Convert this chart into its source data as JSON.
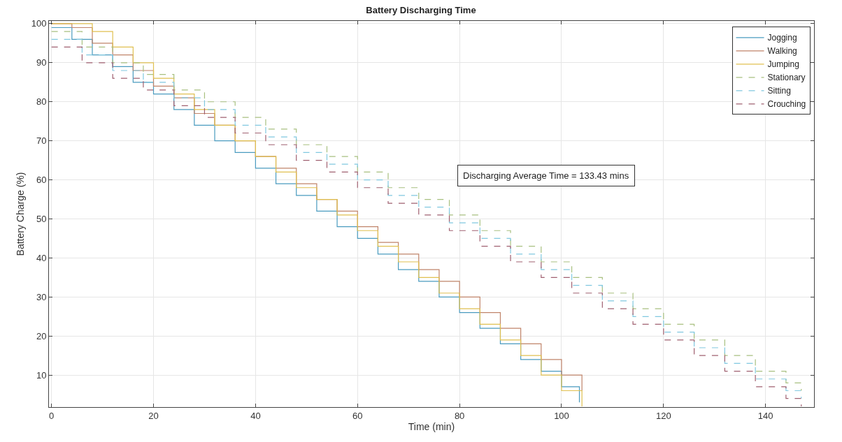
{
  "chart_data": {
    "type": "step",
    "title": "Battery Discharging Time",
    "xlabel": "Time (min)",
    "ylabel": "Battery Charge (%)",
    "xlim": [
      -0.5,
      149.5
    ],
    "xticks": [
      0,
      20,
      40,
      60,
      80,
      100,
      120,
      140
    ],
    "ylim": [
      1.8,
      100.7
    ],
    "yticks": [
      10,
      20,
      30,
      40,
      50,
      60,
      70,
      80,
      90,
      100
    ],
    "grid": true,
    "legend": "top right",
    "marker": "none",
    "annotations": [
      "Discharging Average Time = 133.43 mins"
    ],
    "series": [
      {
        "name": "Jogging",
        "color": "#4a9bbf",
        "line_style": "solid",
        "x": [
          0,
          4,
          8,
          12,
          16,
          20,
          24,
          28,
          32,
          36,
          40,
          44,
          48,
          52,
          56,
          60,
          64,
          68,
          72,
          76,
          80,
          84,
          88,
          92,
          96,
          100,
          103.5
        ],
        "values": [
          99,
          96,
          92,
          89,
          85,
          82,
          78,
          74,
          70,
          67,
          63,
          59,
          56,
          52,
          48,
          45,
          41,
          37,
          34,
          30,
          26,
          22,
          18,
          14,
          11,
          7,
          3
        ]
      },
      {
        "name": "Walking",
        "color": "#c0846a",
        "line_style": "solid",
        "x": [
          0,
          4,
          8,
          12,
          16,
          20,
          24,
          28,
          32,
          36,
          40,
          44,
          48,
          52,
          56,
          60,
          64,
          68,
          72,
          76,
          80,
          84,
          88,
          92,
          96,
          100,
          104
        ],
        "values": [
          100,
          99,
          95,
          92,
          88,
          84,
          81,
          77,
          74,
          70,
          66,
          63,
          59,
          55,
          52,
          48,
          44,
          41,
          37,
          34,
          30,
          26,
          22,
          18,
          14,
          10,
          6
        ]
      },
      {
        "name": "Jumping",
        "color": "#e0c050",
        "line_style": "solid",
        "x": [
          0,
          4,
          8,
          12,
          16,
          20,
          24,
          28,
          32,
          36,
          40,
          44,
          48,
          52,
          56,
          60,
          64,
          68,
          72,
          76,
          80,
          84,
          88,
          92,
          96,
          100,
          104
        ],
        "values": [
          100,
          100,
          98,
          94,
          90,
          86,
          82,
          78,
          74,
          70,
          66,
          62,
          58,
          55,
          51,
          47,
          43,
          39,
          35,
          31,
          27,
          23,
          19,
          15,
          10,
          6,
          2
        ]
      },
      {
        "name": "Stationary",
        "color": "#a8c080",
        "line_style": "dashed",
        "x": [
          0,
          6,
          12,
          18,
          24,
          30,
          36,
          42,
          48,
          54,
          60,
          66,
          72,
          78,
          84,
          90,
          96,
          102,
          108,
          114,
          120,
          126,
          132,
          138,
          144,
          147
        ],
        "values": [
          98,
          94,
          90,
          87,
          83,
          80,
          76,
          73,
          69,
          66,
          62,
          58,
          55,
          51,
          47,
          43,
          39,
          35,
          31,
          27,
          23,
          19,
          15,
          11,
          8,
          6
        ]
      },
      {
        "name": "Sitting",
        "color": "#80c8e0",
        "line_style": "dashed",
        "x": [
          0,
          6,
          12,
          18,
          24,
          30,
          36,
          42,
          48,
          54,
          60,
          66,
          72,
          78,
          84,
          90,
          96,
          102,
          108,
          114,
          120,
          126,
          132,
          138,
          144,
          147
        ],
        "values": [
          96,
          92,
          88,
          85,
          81,
          78,
          74,
          71,
          67,
          64,
          60,
          56,
          53,
          49,
          45,
          41,
          37,
          33,
          29,
          25,
          21,
          17,
          13,
          9,
          6,
          4
        ]
      },
      {
        "name": "Crouching",
        "color": "#a06070",
        "line_style": "dashed",
        "x": [
          0,
          6,
          12,
          18,
          24,
          30,
          36,
          42,
          48,
          54,
          60,
          66,
          72,
          78,
          84,
          90,
          96,
          102,
          108,
          114,
          120,
          126,
          132,
          138,
          144,
          147
        ],
        "values": [
          94,
          90,
          86,
          83,
          79,
          76,
          72,
          69,
          65,
          62,
          58,
          54,
          51,
          47,
          43,
          39,
          35,
          31,
          27,
          23,
          19,
          15,
          11,
          7,
          4,
          2
        ]
      }
    ]
  }
}
